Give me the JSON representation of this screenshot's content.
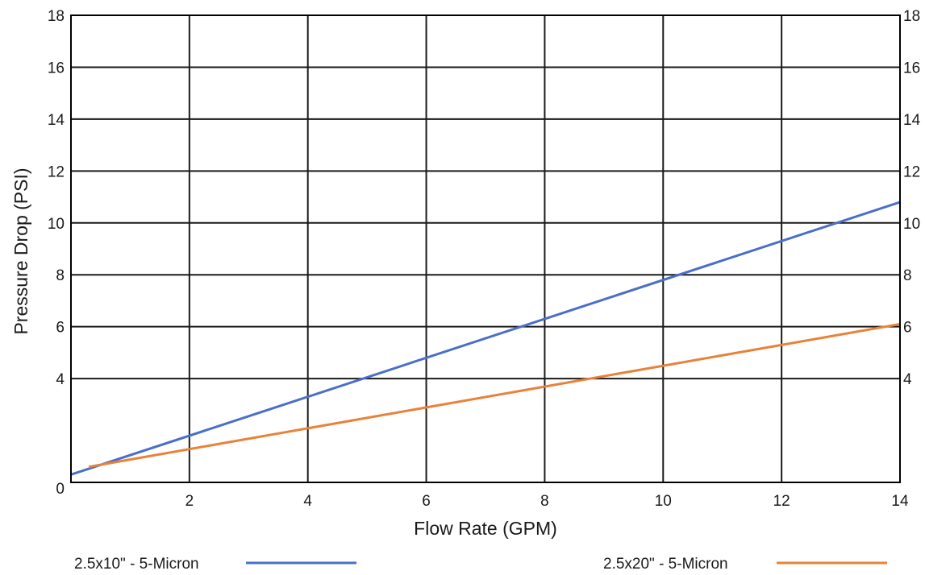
{
  "chart_data": {
    "type": "line",
    "xlabel": "Flow Rate (GPM)",
    "ylabel": "Pressure Drop (PSI)",
    "xlim": [
      0,
      14
    ],
    "ylim": [
      0,
      18
    ],
    "x_ticks": [
      2,
      4,
      6,
      8,
      10,
      12,
      14
    ],
    "y_ticks": [
      0,
      4,
      6,
      8,
      10,
      12,
      14,
      16,
      18
    ],
    "y_ticks_right": [
      4,
      6,
      8,
      10,
      12,
      14,
      16,
      18
    ],
    "x_tick_labels": [
      "2",
      "4",
      "6",
      "8",
      "10",
      "12",
      "14"
    ],
    "y_tick_labels": [
      "0",
      "4",
      "6",
      "8",
      "10",
      "12",
      "14",
      "16",
      "18"
    ],
    "y_tick_labels_right": [
      "4",
      "6",
      "8",
      "10",
      "12",
      "14",
      "16",
      "18"
    ],
    "grid": true,
    "legend_position": "bottom",
    "series": [
      {
        "name": "2.5x10\" - 5-Micron",
        "color": "#4a6fc7",
        "x": [
          0,
          14
        ],
        "y": [
          0.3,
          10.8
        ]
      },
      {
        "name": "2.5x20\" - 5-Micron",
        "color": "#e8823a",
        "x": [
          0.3,
          14
        ],
        "y": [
          0.6,
          6.1
        ]
      }
    ]
  }
}
